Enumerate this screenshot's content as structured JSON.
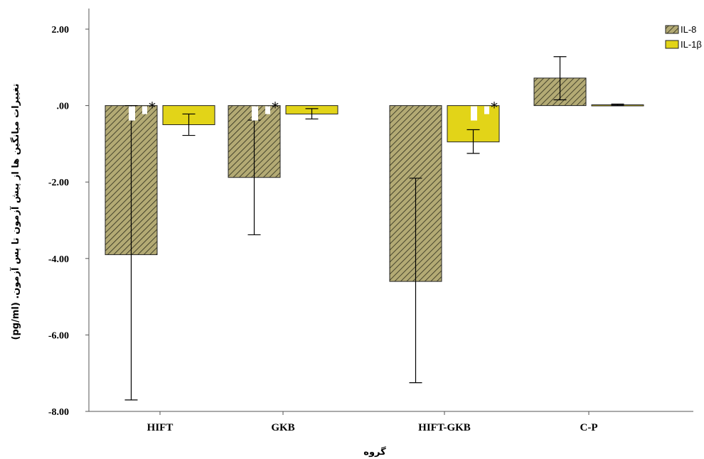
{
  "colors": {
    "il8_fill": "#b3aa74",
    "il8_hatch": "#2a2a1a",
    "il1b_fill": "#e2d418",
    "axis": "#555555"
  },
  "chart_data": {
    "type": "bar",
    "xlabel": "گروه",
    "ylabel": "تغییرات میانگین ها از پیش آزمون تا پس آزمون. (pg/ml)",
    "categories": [
      "HIFT",
      "GKB",
      "HIFT-GKB",
      "C-P"
    ],
    "ylim": [
      -8,
      2
    ],
    "yticks": [
      2,
      0,
      -2,
      -4,
      -6,
      -8
    ],
    "ytick_labels": [
      "2.00",
      ".00",
      "-2.00",
      "-4.00",
      "-6.00",
      "-8.00"
    ],
    "legend_position": "top-right",
    "series": [
      {
        "name": "IL-8",
        "values": [
          -3.9,
          -1.88,
          -4.6,
          0.72
        ],
        "error_low": [
          -7.7,
          -3.38,
          -7.25,
          0.15
        ],
        "error_high": [
          0,
          -0.38,
          -1.9,
          1.28
        ],
        "significant": [
          true,
          true,
          false,
          false
        ]
      },
      {
        "name": "IL-1β",
        "values": [
          -0.5,
          -0.22,
          -0.95,
          0.02
        ],
        "error_low": [
          -0.78,
          -0.35,
          -1.25,
          0.0
        ],
        "error_high": [
          -0.22,
          -0.08,
          -0.63,
          0.04
        ],
        "significant": [
          false,
          false,
          true,
          false
        ]
      }
    ],
    "annotations": [
      "*",
      "*",
      "*"
    ]
  }
}
